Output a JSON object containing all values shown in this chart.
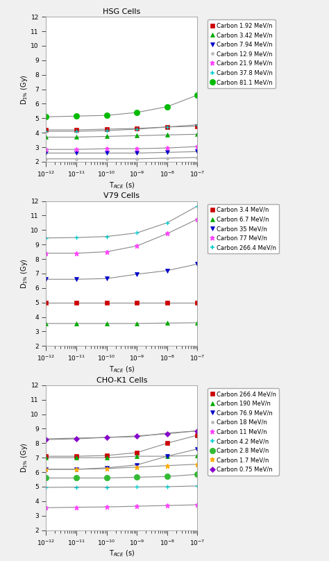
{
  "x_values": [
    1e-12,
    1e-11,
    1e-10,
    1e-09,
    1e-08,
    1e-07
  ],
  "panel1": {
    "title": "HSG Cells",
    "series": [
      {
        "label": "Carbon 1.92 MeV/n",
        "color": "#cc0000",
        "marker": "s",
        "markersize": 4,
        "y": [
          4.2,
          4.2,
          4.25,
          4.3,
          4.4,
          4.45
        ]
      },
      {
        "label": "Carbon 3.42 MeV/n",
        "color": "#00aa00",
        "marker": "^",
        "markersize": 4,
        "y": [
          3.7,
          3.7,
          3.75,
          3.8,
          3.85,
          3.9
        ]
      },
      {
        "label": "Carbon 7.94 MeV/n",
        "color": "#0000cc",
        "marker": "v",
        "markersize": 4,
        "y": [
          2.6,
          2.6,
          2.6,
          2.6,
          2.65,
          2.7
        ]
      },
      {
        "label": "Carbon 12.9 MeV/n",
        "color": "#bbbbbb",
        "marker": "o",
        "markersize": 3,
        "y": [
          2.2,
          2.2,
          2.2,
          2.2,
          2.25,
          2.3
        ]
      },
      {
        "label": "Carbon 21.9 MeV/n",
        "color": "#ff44ff",
        "marker": "*",
        "markersize": 5,
        "y": [
          2.85,
          2.85,
          2.9,
          2.9,
          2.95,
          3.05
        ]
      },
      {
        "label": "Carbon 37.8 MeV/n",
        "color": "#00cccc",
        "marker": "+",
        "markersize": 5,
        "y": [
          4.1,
          4.1,
          4.15,
          4.25,
          4.4,
          4.55
        ]
      },
      {
        "label": "Carbon 81.1 MeV/n",
        "color": "#00bb00",
        "marker": "o",
        "markersize": 6,
        "y": [
          5.1,
          5.15,
          5.2,
          5.4,
          5.8,
          6.6
        ]
      }
    ],
    "ylim": [
      2,
      12
    ],
    "yticks": [
      2,
      3,
      4,
      5,
      6,
      7,
      8,
      9,
      10,
      11,
      12
    ]
  },
  "panel2": {
    "title": "V79 Cells",
    "series": [
      {
        "label": "Carbon 3.4 MeV/n",
        "color": "#cc0000",
        "marker": "s",
        "markersize": 4,
        "y": [
          4.97,
          4.97,
          4.97,
          4.97,
          4.97,
          4.97
        ]
      },
      {
        "label": "Carbon 6.7 MeV/n",
        "color": "#00aa00",
        "marker": "^",
        "markersize": 4,
        "y": [
          3.55,
          3.55,
          3.55,
          3.55,
          3.58,
          3.6
        ]
      },
      {
        "label": "Carbon 35 MeV/n",
        "color": "#0000cc",
        "marker": "v",
        "markersize": 4,
        "y": [
          6.6,
          6.6,
          6.65,
          6.95,
          7.2,
          7.65
        ]
      },
      {
        "label": "Carbon 77 MeV/n",
        "color": "#ff44ff",
        "marker": "*",
        "markersize": 5,
        "y": [
          8.4,
          8.4,
          8.5,
          8.9,
          9.75,
          10.75
        ]
      },
      {
        "label": "Carbon 266.4 MeV/n",
        "color": "#00cccc",
        "marker": "+",
        "markersize": 5,
        "y": [
          9.45,
          9.48,
          9.55,
          9.8,
          10.5,
          11.65
        ]
      }
    ],
    "ylim": [
      2,
      12
    ],
    "yticks": [
      2,
      3,
      4,
      5,
      6,
      7,
      8,
      9,
      10,
      11,
      12
    ]
  },
  "panel3": {
    "title": "CHO-K1 Cells",
    "series": [
      {
        "label": "Carbon 266.4 MeV/n",
        "color": "#cc0000",
        "marker": "s",
        "markersize": 4,
        "y": [
          7.1,
          7.1,
          7.15,
          7.35,
          8.0,
          8.55
        ]
      },
      {
        "label": "Carbon 190 MeV/n",
        "color": "#00aa00",
        "marker": "^",
        "markersize": 4,
        "y": [
          7.0,
          7.0,
          7.0,
          7.1,
          7.1,
          7.15
        ]
      },
      {
        "label": "Carbon 76.9 MeV/n",
        "color": "#0000cc",
        "marker": "v",
        "markersize": 4,
        "y": [
          6.2,
          6.2,
          6.3,
          6.5,
          7.1,
          7.6
        ]
      },
      {
        "label": "Carbon 18 MeV/n",
        "color": "#bbbbbb",
        "marker": "o",
        "markersize": 3,
        "y": [
          8.3,
          8.35,
          8.4,
          8.45,
          8.7,
          8.85
        ]
      },
      {
        "label": "Carbon 11 MeV/n",
        "color": "#ff44ff",
        "marker": "*",
        "markersize": 5,
        "y": [
          3.55,
          3.58,
          3.6,
          3.65,
          3.7,
          3.75
        ]
      },
      {
        "label": "Carbon 4.2 MeV/n",
        "color": "#00cccc",
        "marker": "+",
        "markersize": 5,
        "y": [
          4.95,
          4.97,
          4.97,
          4.98,
          5.0,
          5.05
        ]
      },
      {
        "label": "Carbon 2.8 MeV/n",
        "color": "#33bb33",
        "marker": "o",
        "markersize": 6,
        "y": [
          5.6,
          5.6,
          5.6,
          5.65,
          5.7,
          5.85
        ]
      },
      {
        "label": "Carbon 1.7 MeV/n",
        "color": "#ffaa00",
        "marker": "*",
        "markersize": 5,
        "y": [
          6.2,
          6.2,
          6.25,
          6.35,
          6.45,
          6.55
        ]
      },
      {
        "label": "Carbon 0.75 MeV/n",
        "color": "#8800cc",
        "marker": "D",
        "markersize": 4,
        "y": [
          8.25,
          8.3,
          8.4,
          8.5,
          8.65,
          8.85
        ]
      }
    ],
    "ylim": [
      2,
      12
    ],
    "yticks": [
      2,
      3,
      4,
      5,
      6,
      7,
      8,
      9,
      10,
      11,
      12
    ]
  },
  "xlabel": "T$_{RCE}$ (s)",
  "ylabel": "D$_{1\\%}$ (Gy)",
  "bg_color": "#f0f0f0",
  "plot_bg": "#ffffff",
  "line_color": "#888888",
  "xlim": [
    1e-12,
    1e-07
  ],
  "fig_width": 4.74,
  "fig_height": 8.08
}
